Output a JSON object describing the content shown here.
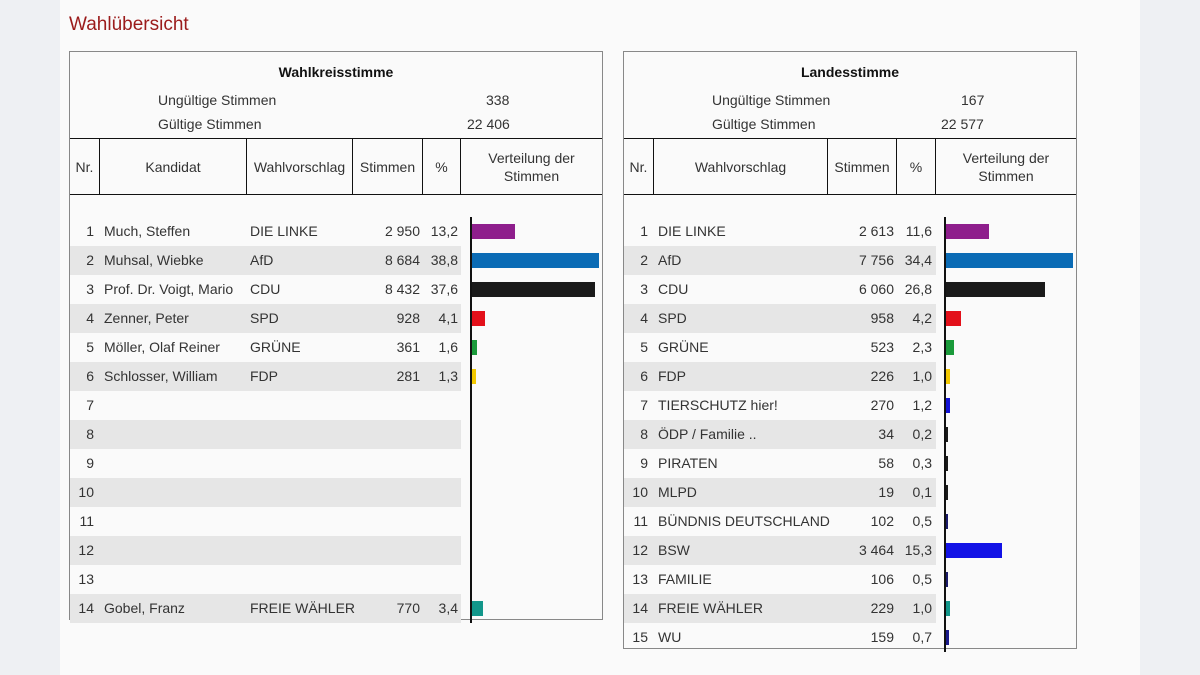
{
  "title": "Wahlübersicht",
  "wahlkreis": {
    "heading": "Wahlkreisstimme",
    "invalid_label": "Ungültige Stimmen",
    "invalid_value": "338",
    "valid_label": "Gültige Stimmen",
    "valid_value": "22 406",
    "columns": [
      "Nr.",
      "Kandidat",
      "Wahlvorschlag",
      "Stimmen",
      "%",
      "Verteilung der Stimmen"
    ],
    "rows": [
      {
        "nr": "1",
        "kandidat": "Much, Steffen",
        "partei": "DIE LINKE",
        "stimmen": "2 950",
        "prozent": "13,2",
        "pct": 13.2,
        "color": "#8e1e8c"
      },
      {
        "nr": "2",
        "kandidat": "Muhsal, Wiebke",
        "partei": "AfD",
        "stimmen": "8 684",
        "prozent": "38,8",
        "pct": 38.8,
        "color": "#0a6bb5"
      },
      {
        "nr": "3",
        "kandidat": "Prof. Dr. Voigt, Mario",
        "partei": "CDU",
        "stimmen": "8 432",
        "prozent": "37,6",
        "pct": 37.6,
        "color": "#1a1a1a"
      },
      {
        "nr": "4",
        "kandidat": "Zenner, Peter",
        "partei": "SPD",
        "stimmen": "928",
        "prozent": "4,1",
        "pct": 4.1,
        "color": "#e3101a"
      },
      {
        "nr": "5",
        "kandidat": "Möller, Olaf Reiner",
        "partei": "GRÜNE",
        "stimmen": "361",
        "prozent": "1,6",
        "pct": 1.6,
        "color": "#1a9a3a"
      },
      {
        "nr": "6",
        "kandidat": "Schlosser, William",
        "partei": "FDP",
        "stimmen": "281",
        "prozent": "1,3",
        "pct": 1.3,
        "color": "#f2c800"
      },
      {
        "nr": "7",
        "kandidat": "",
        "partei": "",
        "stimmen": "",
        "prozent": "",
        "pct": 0,
        "color": "#000"
      },
      {
        "nr": "8",
        "kandidat": "",
        "partei": "",
        "stimmen": "",
        "prozent": "",
        "pct": 0,
        "color": "#000"
      },
      {
        "nr": "9",
        "kandidat": "",
        "partei": "",
        "stimmen": "",
        "prozent": "",
        "pct": 0,
        "color": "#000"
      },
      {
        "nr": "10",
        "kandidat": "",
        "partei": "",
        "stimmen": "",
        "prozent": "",
        "pct": 0,
        "color": "#000"
      },
      {
        "nr": "11",
        "kandidat": "",
        "partei": "",
        "stimmen": "",
        "prozent": "",
        "pct": 0,
        "color": "#000"
      },
      {
        "nr": "12",
        "kandidat": "",
        "partei": "",
        "stimmen": "",
        "prozent": "",
        "pct": 0,
        "color": "#000"
      },
      {
        "nr": "13",
        "kandidat": "",
        "partei": "",
        "stimmen": "",
        "prozent": "",
        "pct": 0,
        "color": "#000"
      },
      {
        "nr": "14",
        "kandidat": "Gobel, Franz",
        "partei": "FREIE WÄHLER",
        "stimmen": "770",
        "prozent": "3,4",
        "pct": 3.4,
        "color": "#12968a"
      }
    ]
  },
  "landes": {
    "heading": "Landesstimme",
    "invalid_label": "Ungültige Stimmen",
    "invalid_value": "167",
    "valid_label": "Gültige Stimmen",
    "valid_value": "22 577",
    "columns": [
      "Nr.",
      "Wahlvorschlag",
      "Stimmen",
      "%",
      "Verteilung der Stimmen"
    ],
    "rows": [
      {
        "nr": "1",
        "partei": "DIE LINKE",
        "stimmen": "2 613",
        "prozent": "11,6",
        "pct": 11.6,
        "color": "#8e1e8c"
      },
      {
        "nr": "2",
        "partei": "AfD",
        "stimmen": "7 756",
        "prozent": "34,4",
        "pct": 34.4,
        "color": "#0a6bb5"
      },
      {
        "nr": "3",
        "partei": "CDU",
        "stimmen": "6 060",
        "prozent": "26,8",
        "pct": 26.8,
        "color": "#1a1a1a"
      },
      {
        "nr": "4",
        "partei": "SPD",
        "stimmen": "958",
        "prozent": "4,2",
        "pct": 4.2,
        "color": "#e3101a"
      },
      {
        "nr": "5",
        "partei": "GRÜNE",
        "stimmen": "523",
        "prozent": "2,3",
        "pct": 2.3,
        "color": "#1a9a3a"
      },
      {
        "nr": "6",
        "partei": "FDP",
        "stimmen": "226",
        "prozent": "1,0",
        "pct": 1.0,
        "color": "#f2c800"
      },
      {
        "nr": "7",
        "partei": "TIERSCHUTZ hier!",
        "stimmen": "270",
        "prozent": "1,2",
        "pct": 1.2,
        "color": "#1212d6"
      },
      {
        "nr": "8",
        "partei": "ÖDP / Familie ..",
        "stimmen": "34",
        "prozent": "0,2",
        "pct": 0.2,
        "color": "#1a1a1a"
      },
      {
        "nr": "9",
        "partei": "PIRATEN",
        "stimmen": "58",
        "prozent": "0,3",
        "pct": 0.3,
        "color": "#1a1a1a"
      },
      {
        "nr": "10",
        "partei": "MLPD",
        "stimmen": "19",
        "prozent": "0,1",
        "pct": 0.1,
        "color": "#1a1a1a"
      },
      {
        "nr": "11",
        "partei": "BÜNDNIS DEUTSCHLAND",
        "stimmen": "102",
        "prozent": "0,5",
        "pct": 0.5,
        "color": "#1a1a6a"
      },
      {
        "nr": "12",
        "partei": "BSW",
        "stimmen": "3 464",
        "prozent": "15,3",
        "pct": 15.3,
        "color": "#1212e6"
      },
      {
        "nr": "13",
        "partei": "FAMILIE",
        "stimmen": "106",
        "prozent": "0,5",
        "pct": 0.5,
        "color": "#1a1a6a"
      },
      {
        "nr": "14",
        "partei": "FREIE WÄHLER",
        "stimmen": "229",
        "prozent": "1,0",
        "pct": 1.0,
        "color": "#12968a"
      },
      {
        "nr": "15",
        "partei": "WU",
        "stimmen": "159",
        "prozent": "0,7",
        "pct": 0.7,
        "color": "#1a1a8a"
      }
    ]
  }
}
